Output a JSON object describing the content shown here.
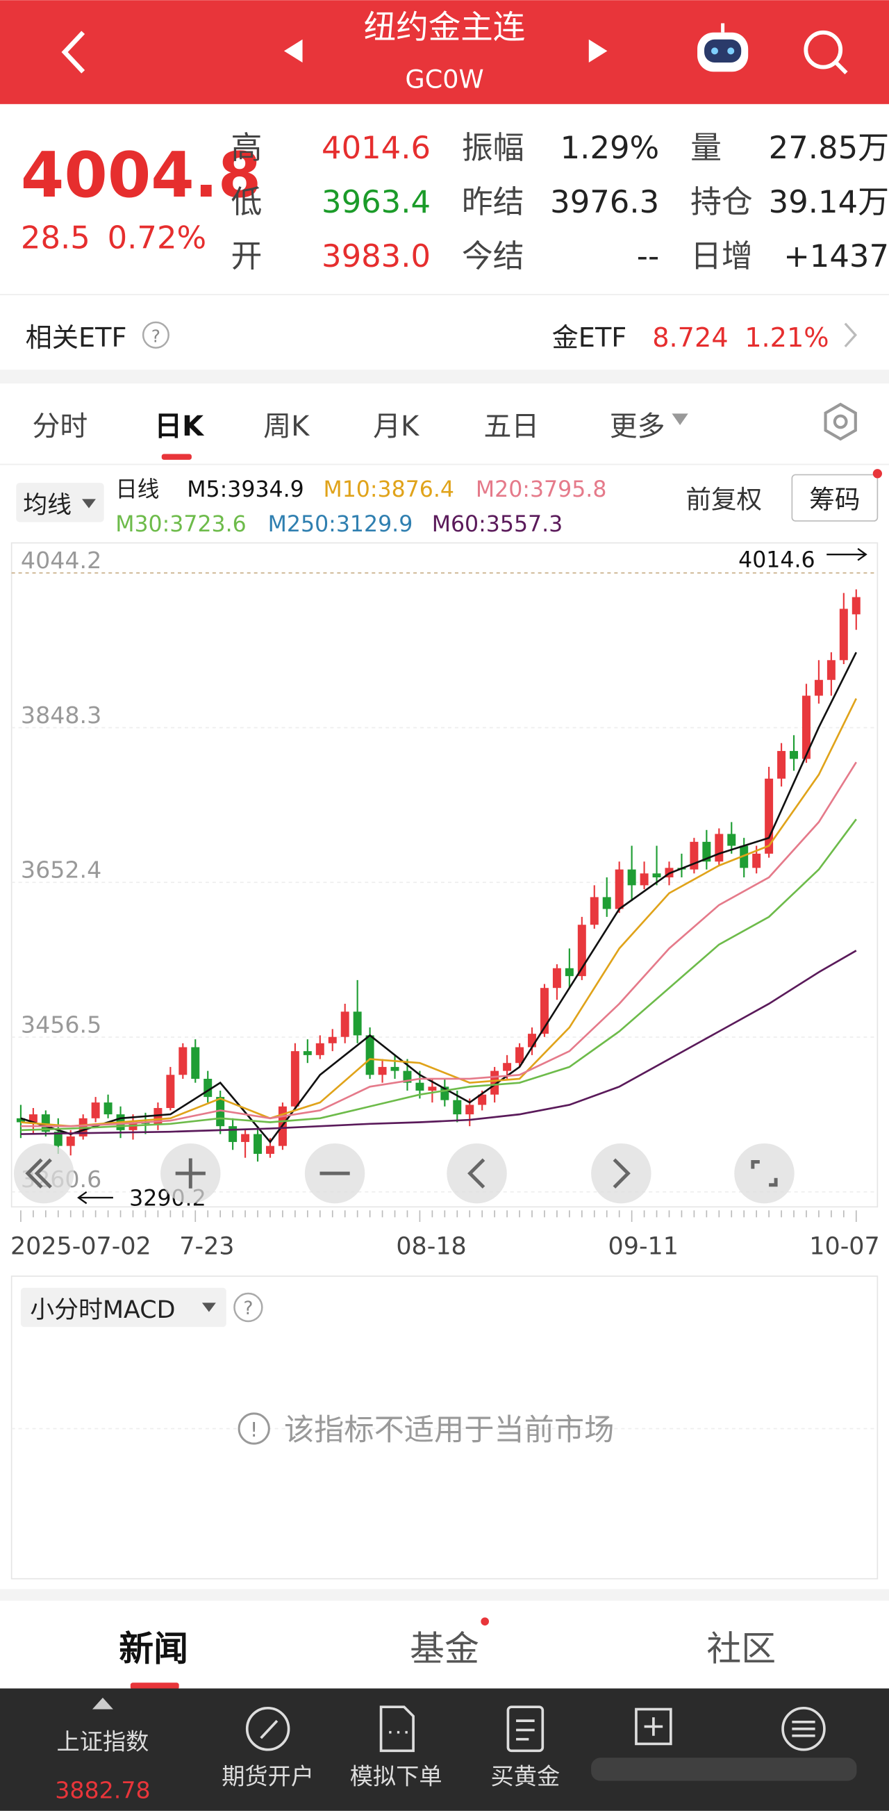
{
  "header": {
    "title": "纽约金主连",
    "code": "GC0W"
  },
  "quote": {
    "price": 4004.8,
    "change": 28.5,
    "change_pct": "0.72%",
    "rows": [
      [
        "高",
        "4014.6",
        "振幅",
        "1.29%",
        "量",
        "27.85万"
      ],
      [
        "低",
        "3963.4",
        "昨结",
        "3976.3",
        "持仓",
        "39.14万"
      ],
      [
        "开",
        "3983.0",
        "今结",
        "--",
        "日增",
        "+1437"
      ]
    ]
  },
  "etf": {
    "label": "相关ETF",
    "name": "金ETF",
    "price": "8.724",
    "pct": "1.21%"
  },
  "tabs": [
    "分时",
    "日K",
    "周K",
    "月K",
    "五日",
    "更多"
  ],
  "indicator": {
    "selector": "均线",
    "line": "日线",
    "adjust": "前复权",
    "chips": "筹码"
  },
  "chart_data": {
    "type": "candlestick",
    "up_color": "#e8383d",
    "down_color": "#1f9e34",
    "ylim": [
      3260.6,
      4044.2
    ],
    "yticks": [
      3260.6,
      3456.5,
      3652.4,
      3848.3,
      4044.2
    ],
    "high_label": 4014.6,
    "low_label": 3290.2,
    "categories": [
      "2025-07-02",
      null,
      null,
      null,
      null,
      null,
      null,
      null,
      null,
      null,
      null,
      null,
      null,
      null,
      "7-23",
      null,
      null,
      null,
      null,
      null,
      null,
      null,
      null,
      null,
      null,
      null,
      null,
      null,
      null,
      null,
      null,
      null,
      "08-18",
      null,
      null,
      null,
      null,
      null,
      null,
      null,
      null,
      null,
      null,
      null,
      null,
      null,
      null,
      null,
      null,
      "09-11",
      null,
      null,
      null,
      null,
      null,
      null,
      null,
      null,
      null,
      null,
      null,
      null,
      null,
      null,
      null,
      null,
      null,
      "10-07"
    ],
    "ohlc": [
      [
        3345,
        3362,
        3320,
        3340
      ],
      [
        3340,
        3358,
        3325,
        3350
      ],
      [
        3350,
        3355,
        3322,
        3328
      ],
      [
        3328,
        3345,
        3300,
        3310
      ],
      [
        3310,
        3330,
        3298,
        3322
      ],
      [
        3322,
        3350,
        3318,
        3345
      ],
      [
        3345,
        3372,
        3340,
        3365
      ],
      [
        3365,
        3375,
        3345,
        3350
      ],
      [
        3350,
        3360,
        3320,
        3330
      ],
      [
        3330,
        3350,
        3318,
        3340
      ],
      [
        3340,
        3352,
        3325,
        3338
      ],
      [
        3338,
        3365,
        3330,
        3358
      ],
      [
        3358,
        3410,
        3355,
        3400
      ],
      [
        3400,
        3440,
        3395,
        3435
      ],
      [
        3435,
        3445,
        3390,
        3395
      ],
      [
        3395,
        3405,
        3365,
        3372
      ],
      [
        3372,
        3380,
        3325,
        3335
      ],
      [
        3335,
        3345,
        3305,
        3315
      ],
      [
        3315,
        3330,
        3295,
        3325
      ],
      [
        3325,
        3335,
        3290.2,
        3300
      ],
      [
        3300,
        3320,
        3295,
        3310
      ],
      [
        3310,
        3365,
        3305,
        3360
      ],
      [
        3360,
        3440,
        3355,
        3430
      ],
      [
        3430,
        3445,
        3415,
        3425
      ],
      [
        3425,
        3450,
        3420,
        3440
      ],
      [
        3440,
        3458,
        3430,
        3448
      ],
      [
        3448,
        3490,
        3440,
        3480
      ],
      [
        3480,
        3520,
        3440,
        3450
      ],
      [
        3450,
        3460,
        3395,
        3400
      ],
      [
        3400,
        3420,
        3390,
        3410
      ],
      [
        3410,
        3425,
        3395,
        3405
      ],
      [
        3405,
        3420,
        3380,
        3390
      ],
      [
        3390,
        3405,
        3370,
        3380
      ],
      [
        3380,
        3395,
        3365,
        3385
      ],
      [
        3385,
        3395,
        3360,
        3368
      ],
      [
        3368,
        3380,
        3340,
        3350
      ],
      [
        3350,
        3370,
        3335,
        3362
      ],
      [
        3362,
        3380,
        3355,
        3375
      ],
      [
        3375,
        3410,
        3365,
        3405
      ],
      [
        3405,
        3425,
        3395,
        3415
      ],
      [
        3415,
        3440,
        3410,
        3435
      ],
      [
        3435,
        3460,
        3425,
        3452
      ],
      [
        3452,
        3515,
        3448,
        3510
      ],
      [
        3510,
        3540,
        3495,
        3535
      ],
      [
        3535,
        3560,
        3510,
        3525
      ],
      [
        3525,
        3600,
        3520,
        3590
      ],
      [
        3590,
        3640,
        3585,
        3625
      ],
      [
        3625,
        3650,
        3600,
        3610
      ],
      [
        3610,
        3670,
        3605,
        3660
      ],
      [
        3660,
        3690,
        3620,
        3640
      ],
      [
        3640,
        3670,
        3635,
        3655
      ],
      [
        3655,
        3690,
        3640,
        3650
      ],
      [
        3650,
        3670,
        3640,
        3662
      ],
      [
        3662,
        3680,
        3650,
        3660
      ],
      [
        3660,
        3700,
        3655,
        3695
      ],
      [
        3695,
        3710,
        3660,
        3670
      ],
      [
        3670,
        3712,
        3665,
        3705
      ],
      [
        3705,
        3720,
        3680,
        3690
      ],
      [
        3690,
        3700,
        3650,
        3662
      ],
      [
        3662,
        3690,
        3655,
        3680
      ],
      [
        3680,
        3790,
        3675,
        3775
      ],
      [
        3775,
        3820,
        3765,
        3810
      ],
      [
        3810,
        3830,
        3785,
        3800
      ],
      [
        3800,
        3895,
        3795,
        3880
      ],
      [
        3880,
        3925,
        3870,
        3900
      ],
      [
        3900,
        3935,
        3880,
        3925
      ],
      [
        3925,
        4010,
        3920,
        3990
      ],
      [
        3983.0,
        4014.6,
        3963.4,
        4004.8
      ]
    ],
    "ma_x": [
      0,
      4,
      8,
      12,
      16,
      20,
      24,
      28,
      32,
      36,
      40,
      44,
      48,
      52,
      56,
      60,
      64,
      67
    ],
    "ma": [
      {
        "name": "M5:3934.9",
        "color": "#111111",
        "values": [
          3345,
          3325,
          3345,
          3350,
          3390,
          3315,
          3400,
          3450,
          3400,
          3365,
          3410,
          3510,
          3610,
          3655,
          3680,
          3700,
          3840,
          3934.9
        ]
      },
      {
        "name": "M10:3876.4",
        "color": "#e0a31a",
        "values": [
          3340,
          3335,
          3340,
          3345,
          3370,
          3345,
          3365,
          3420,
          3415,
          3390,
          3395,
          3460,
          3560,
          3630,
          3665,
          3690,
          3780,
          3876.4
        ]
      },
      {
        "name": "M20:3795.8",
        "color": "#e57a8a",
        "values": [
          3335,
          3335,
          3338,
          3342,
          3355,
          3345,
          3355,
          3385,
          3395,
          3395,
          3400,
          3430,
          3490,
          3560,
          3615,
          3650,
          3720,
          3795.8
        ]
      },
      {
        "name": "M30:3723.6",
        "color": "#6dbb4a",
        "values": [
          3330,
          3332,
          3335,
          3338,
          3345,
          3340,
          3345,
          3360,
          3375,
          3385,
          3390,
          3410,
          3455,
          3510,
          3565,
          3600,
          3660,
          3723.6
        ]
      },
      {
        "name": "M250:3129.9",
        "color": "#2f7fb0"
      },
      {
        "name": "M60:3557.3",
        "color": "#5a1a5a",
        "values": [
          3325,
          3326,
          3327,
          3328,
          3330,
          3332,
          3335,
          3338,
          3340,
          3343,
          3350,
          3362,
          3385,
          3420,
          3455,
          3490,
          3530,
          3557.3
        ]
      }
    ]
  },
  "macd": {
    "label": "小分时MACD",
    "message": "该指标不适用于当前市场"
  },
  "news_tabs": [
    "新闻",
    "基金",
    "社区"
  ],
  "bottom_bar": {
    "index_name": "上证指数",
    "index_value": "3882.78",
    "items": [
      "期货开户",
      "模拟下单",
      "买黄金"
    ]
  }
}
